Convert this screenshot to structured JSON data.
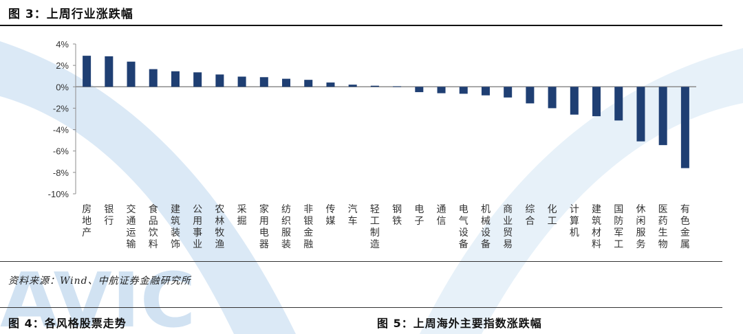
{
  "figure": {
    "title": "图 3：上周行业涨跌幅",
    "source": "资料来源：Wind、中航证券金融研究所",
    "watermark_text": "AVIC"
  },
  "next_figures": {
    "left_title": "图 4：各风格股票走势",
    "right_title": "图 5：上周海外主要指数涨跌幅"
  },
  "colors": {
    "bar": "#1f3f73",
    "axis": "#8c8c8c",
    "watermark": "#d7e7f5"
  },
  "chart_data": {
    "type": "bar",
    "title": "",
    "xlabel": "",
    "ylabel": "",
    "ylim": [
      -10,
      4
    ],
    "yticks": [
      4,
      2,
      0,
      -2,
      -4,
      -6,
      -8,
      -10
    ],
    "ytick_labels": [
      "4%",
      "2%",
      "0%",
      "-2%",
      "-4%",
      "-6%",
      "-8%",
      "-10%"
    ],
    "grid": false,
    "legend": "none",
    "categories": [
      "房地产",
      "银行",
      "交通运输",
      "食品饮料",
      "建筑装饰",
      "公用事业",
      "农林牧渔",
      "采掘",
      "家用电器",
      "纺织服装",
      "非银金融",
      "传媒",
      "汽车",
      "轻工制造",
      "钢铁",
      "电子",
      "通信",
      "电气设备",
      "机械设备",
      "商业贸易",
      "综合",
      "化工",
      "计算机",
      "建筑材料",
      "国防军工",
      "休闲服务",
      "医药生物",
      "有色金属"
    ],
    "values": [
      2.9,
      2.85,
      2.35,
      1.65,
      1.45,
      1.35,
      1.15,
      0.95,
      0.9,
      0.75,
      0.65,
      0.4,
      0.2,
      0.1,
      0.05,
      -0.5,
      -0.6,
      -0.65,
      -0.8,
      -1.0,
      -1.55,
      -2.0,
      -2.6,
      -2.75,
      -3.15,
      -5.1,
      -5.45,
      -7.6
    ]
  }
}
